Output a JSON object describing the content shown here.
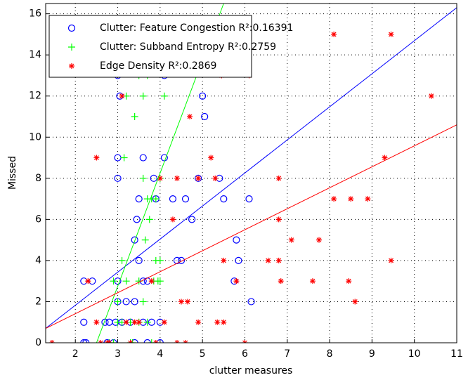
{
  "chart_data": {
    "type": "scatter",
    "xlabel": "clutter measures",
    "ylabel": "Missed",
    "xlim": [
      1.3,
      11
    ],
    "ylim": [
      0,
      16.5
    ],
    "xticks": [
      2,
      3,
      4,
      5,
      6,
      7,
      8,
      9,
      10,
      11
    ],
    "yticks": [
      0,
      2,
      4,
      6,
      8,
      10,
      12,
      14,
      16
    ],
    "grid": true,
    "legend": "upper left",
    "series": [
      {
        "name": "Clutter: Feature Congestion R²:0.16391",
        "color": "#0000ff",
        "marker": "circle",
        "x": [
          2.2,
          2.4,
          2.2,
          2.2,
          2.25,
          2.7,
          2.8,
          2.75,
          2.9,
          3.0,
          3.0,
          3.0,
          3.0,
          3.05,
          3.0,
          3.1,
          3.2,
          3.3,
          3.4,
          3.4,
          3.45,
          3.5,
          3.6,
          3.6,
          3.6,
          3.7,
          3.8,
          3.85,
          3.9,
          4.0,
          4.0,
          4.1,
          4.1,
          4.3,
          4.4,
          4.5,
          4.6,
          4.75,
          4.9,
          5.0,
          5.05,
          5.4,
          5.5,
          5.75,
          5.8,
          5.85,
          6.1,
          6.15,
          3.4,
          3.5,
          2.95,
          3.7
        ],
        "values": [
          3,
          3,
          1,
          0,
          0,
          1,
          1,
          0,
          0,
          2,
          3,
          8,
          9,
          12,
          13,
          1,
          2,
          1,
          2,
          5,
          6,
          7,
          3,
          9,
          1,
          0,
          1,
          8,
          7,
          0,
          1,
          9,
          13,
          7,
          4,
          4,
          7,
          6,
          8,
          12,
          11,
          8,
          7,
          3,
          5,
          4,
          7,
          2,
          0,
          4,
          1,
          3
        ],
        "fit": {
          "x": [
            1.3,
            11
          ],
          "y": [
            0.7,
            16.3
          ]
        }
      },
      {
        "name": "Clutter: Subband Entropy R²:0.2759",
        "color": "#00ff00",
        "marker": "plus",
        "x": [
          2.8,
          2.9,
          3.0,
          2.9,
          3.0,
          3.1,
          3.15,
          3.2,
          3.3,
          3.35,
          3.4,
          3.5,
          3.6,
          3.6,
          3.65,
          3.7,
          3.7,
          3.75,
          3.8,
          3.85,
          3.9,
          3.9,
          3.95,
          4.0,
          4.0,
          4.1,
          3.5,
          3.6,
          3.7,
          3.2,
          3.1,
          3.3,
          3.8,
          3.5,
          4.0
        ],
        "values": [
          0,
          0,
          1,
          3,
          2,
          4,
          9,
          12,
          0,
          0,
          11,
          13,
          12,
          8,
          5,
          7,
          13,
          6,
          7,
          3,
          4,
          7,
          3,
          4,
          8,
          12,
          1,
          2,
          1,
          3,
          1,
          1,
          0,
          3,
          3
        ],
        "fit": {
          "x": [
            2.5,
            5.5
          ],
          "y": [
            0,
            16.5
          ]
        }
      },
      {
        "name": "Edge Density R²:0.2869",
        "color": "#ff0000",
        "marker": "star",
        "x": [
          1.45,
          2.3,
          2.5,
          2.5,
          2.6,
          2.75,
          2.8,
          3.1,
          3.2,
          3.3,
          3.4,
          3.5,
          3.8,
          3.9,
          4.0,
          4.1,
          4.3,
          4.4,
          4.4,
          4.5,
          4.6,
          4.65,
          4.7,
          4.9,
          4.9,
          5.2,
          5.3,
          5.35,
          5.45,
          5.5,
          5.5,
          5.8,
          6.1,
          6.55,
          6.8,
          6.8,
          6.8,
          6.85,
          7.1,
          7.6,
          7.75,
          8.1,
          8.1,
          8.45,
          8.5,
          8.6,
          8.9,
          9.3,
          9.45,
          9.45,
          10.4,
          6.0
        ],
        "values": [
          0,
          3,
          9,
          1,
          0,
          0,
          0,
          12,
          1,
          0,
          1,
          1,
          3,
          0,
          8,
          1,
          6,
          8,
          0,
          2,
          0,
          2,
          11,
          8,
          1,
          9,
          8,
          1,
          13,
          1,
          4,
          3,
          13,
          4,
          4,
          8,
          6,
          3,
          5,
          3,
          5,
          7,
          15,
          3,
          7,
          2,
          7,
          9,
          15,
          4,
          12,
          0
        ],
        "fit": {
          "x": [
            1.3,
            11
          ],
          "y": [
            0.7,
            10.6
          ]
        }
      }
    ]
  }
}
